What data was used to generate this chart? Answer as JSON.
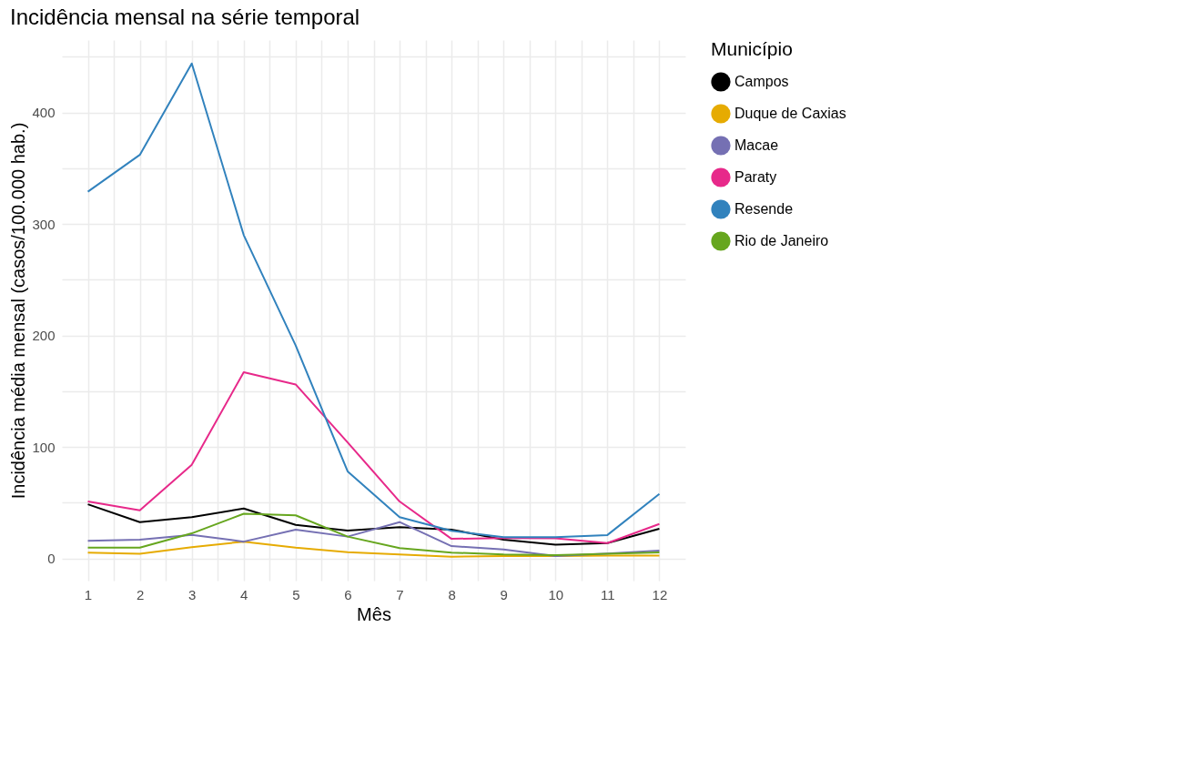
{
  "chart_data": {
    "type": "line",
    "title": "Incidência mensal na série temporal",
    "xlabel": "Mês",
    "ylabel": "Incidência média mensal (casos/100.000 hab.)",
    "legend_title": "Município",
    "x": [
      1,
      2,
      3,
      4,
      5,
      6,
      7,
      8,
      9,
      10,
      11,
      12
    ],
    "series": [
      {
        "name": "Campos",
        "color": "#000000",
        "values": [
          48.5,
          32.5,
          37,
          44.7,
          30,
          25,
          28,
          25.8,
          16.8,
          12.3,
          13.7,
          26.5
        ]
      },
      {
        "name": "Duque de Caxias",
        "color": "#e6ab02",
        "values": [
          5.2,
          4,
          10,
          15,
          9.6,
          5.6,
          3.4,
          1.5,
          2,
          2,
          2.4,
          2.5
        ]
      },
      {
        "name": "Macae",
        "color": "#7570b3",
        "values": [
          15.7,
          16.8,
          21,
          15,
          25.8,
          19.5,
          32.5,
          11,
          8,
          2,
          4.3,
          6.9
        ]
      },
      {
        "name": "Paraty",
        "color": "#e7298a",
        "values": [
          51,
          43,
          84,
          167,
          156,
          104,
          51,
          17.5,
          18.2,
          18,
          13.7,
          30.8
        ]
      },
      {
        "name": "Resende",
        "color": "#3182bd",
        "values": [
          329,
          362,
          444,
          290,
          191,
          78,
          37,
          24.7,
          19,
          19,
          20.9,
          57.7
        ]
      },
      {
        "name": "Rio de Janeiro",
        "color": "#66a61e",
        "values": [
          9.6,
          9.6,
          22.4,
          40,
          38.6,
          19.5,
          9.2,
          5.2,
          3.4,
          2.9,
          4,
          5.3
        ]
      }
    ],
    "xlim": [
      0.5,
      12.5
    ],
    "ylim": [
      -20,
      465
    ],
    "xticks": [
      1,
      {
        "value": 1.5,
        "label": null
      },
      2,
      {
        "value": 2.5,
        "label": null
      },
      3,
      {
        "value": 3.5,
        "label": null
      },
      4,
      {
        "value": 4.5,
        "label": null
      },
      5,
      {
        "value": 5.5,
        "label": null
      },
      6,
      {
        "value": 6.5,
        "label": null
      },
      7,
      {
        "value": 7.5,
        "label": null
      },
      8,
      {
        "value": 8.5,
        "label": null
      },
      9,
      {
        "value": 9.5,
        "label": null
      },
      10,
      {
        "value": 10.5,
        "label": null
      },
      11,
      {
        "value": 11.5,
        "label": null
      },
      12
    ],
    "yticks": [
      0,
      {
        "value": 50,
        "label": null
      },
      100,
      {
        "value": 150,
        "label": null
      },
      200,
      {
        "value": 250,
        "label": null
      },
      300,
      {
        "value": 350,
        "label": null
      },
      400,
      {
        "value": 450,
        "label": null
      }
    ],
    "grid": true,
    "legend": "right",
    "line_style": "solid"
  }
}
